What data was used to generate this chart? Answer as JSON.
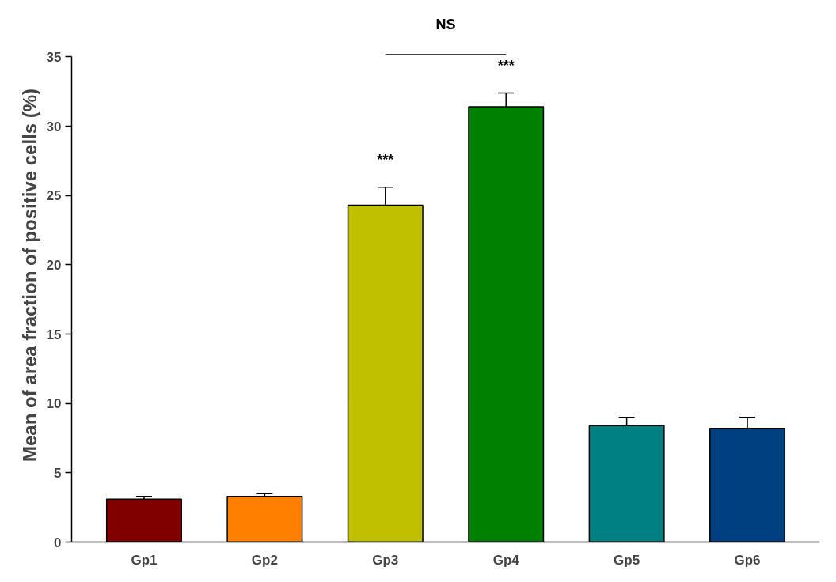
{
  "chart_data": {
    "type": "bar",
    "ylabel": "Mean of area fraction of positive cells (%)",
    "categories": [
      "Gp1",
      "Gp2",
      "Gp3",
      "Gp4",
      "Gp5",
      "Gp6"
    ],
    "values": [
      3.1,
      3.3,
      24.3,
      31.4,
      8.4,
      8.2
    ],
    "colors": [
      "#800000",
      "#ff8000",
      "#c0c000",
      "#008000",
      "#008080",
      "#004080"
    ],
    "errors": [
      [
        3.1,
        3.3
      ],
      [
        3.3,
        3.5
      ],
      [
        24.3,
        25.6
      ],
      [
        31.4,
        32.4
      ],
      [
        8.4,
        9.0
      ],
      [
        8.2,
        9.0
      ]
    ],
    "value_labels": [
      null,
      null,
      "***",
      "***",
      null,
      null
    ],
    "ylim": [
      0,
      35
    ],
    "yticks": [
      0,
      5,
      10,
      15,
      20,
      25,
      30,
      35
    ],
    "grid": false,
    "annotations": [
      "NS"
    ]
  }
}
